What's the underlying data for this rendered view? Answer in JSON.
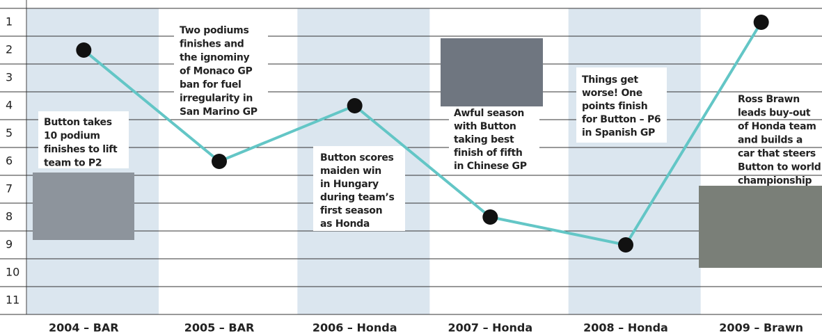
{
  "chart_data": {
    "type": "line",
    "categories": [
      "2004 – BAR",
      "2005 – BAR",
      "2006 – Honda",
      "2007 – Honda",
      "2008 – Honda",
      "2009 – Brawn"
    ],
    "values": [
      2,
      6,
      4,
      8,
      9,
      1
    ],
    "color": "#63c6c6",
    "ylim": [
      11.5,
      0.5
    ],
    "yticks": [
      1,
      2,
      3,
      4,
      5,
      6,
      7,
      8,
      9,
      10,
      11
    ],
    "grid": true,
    "annotations": [
      [
        "Button takes",
        "10 podium",
        "finishes to lift",
        "team to P2"
      ],
      [
        "Two podiums",
        "finishes and",
        "the ignominy",
        "of Monaco GP",
        "ban for fuel",
        "irregularity in",
        "San Marino GP"
      ],
      [
        "Button scores",
        "maiden win",
        "in Hungary",
        "during team’s",
        "first season",
        "as Honda"
      ],
      [
        "Awful season",
        "with Button",
        "taking best",
        "finish of fifth",
        "in Chinese GP"
      ],
      [
        "Things get",
        "worse! One",
        "points finish",
        "for Button – P6",
        "in Spanish GP"
      ],
      [
        "Ross Brawn",
        "leads buy-out",
        "of Honda team",
        "and builds a",
        "car that steers",
        "Button to world",
        "championship"
      ]
    ]
  }
}
